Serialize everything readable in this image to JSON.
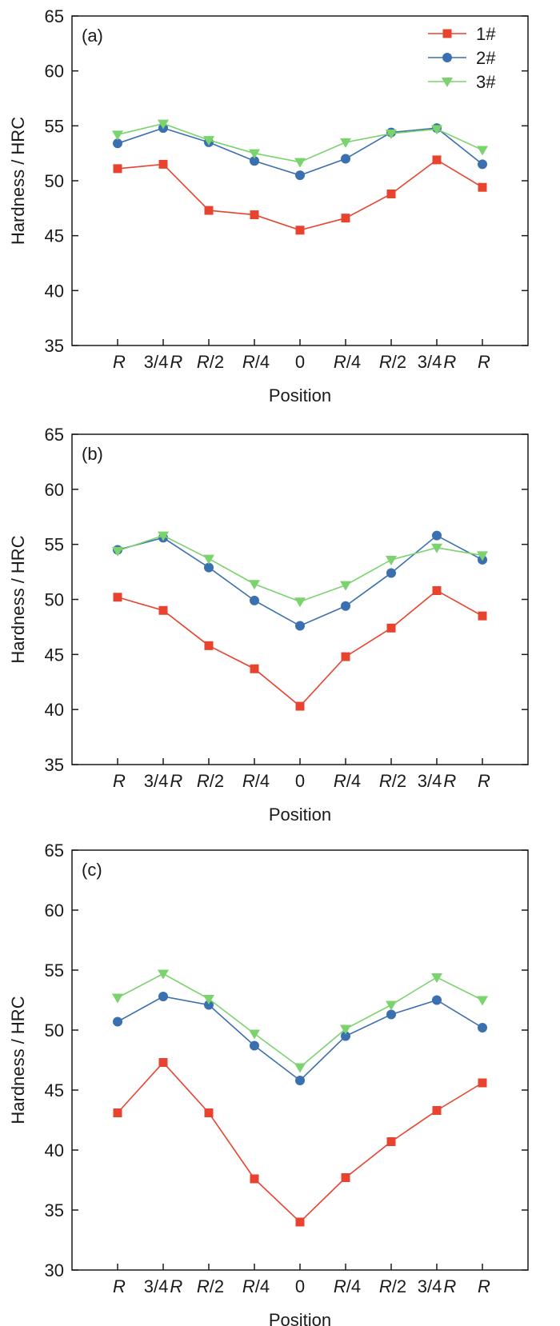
{
  "chart_data": [
    {
      "type": "line",
      "panel_label": "(a)",
      "xlabel": "Position",
      "ylabel": "Hardness / HRC",
      "ylim": [
        35,
        65
      ],
      "yticks": [
        35,
        40,
        45,
        50,
        55,
        60,
        65
      ],
      "categories": [
        "R",
        "3/4R",
        "R/2",
        "R/4",
        "0",
        "R/4",
        "R/2",
        "3/4R",
        "R"
      ],
      "grid": false,
      "legend": {
        "placement": "top-right",
        "entries": [
          "1#",
          "2#",
          "3#"
        ]
      },
      "series": [
        {
          "name": "1#",
          "color": "#e8432f",
          "marker": "square",
          "values": [
            51.1,
            51.5,
            47.3,
            46.9,
            45.5,
            46.6,
            48.8,
            51.9,
            49.4
          ]
        },
        {
          "name": "2#",
          "color": "#3a6fb0",
          "marker": "circle",
          "values": [
            53.4,
            54.8,
            53.5,
            51.8,
            50.5,
            52.0,
            54.4,
            54.8,
            51.5
          ]
        },
        {
          "name": "3#",
          "color": "#7bd36e",
          "marker": "triangle-down",
          "values": [
            54.2,
            55.2,
            53.7,
            52.5,
            51.7,
            53.5,
            54.3,
            54.7,
            52.8
          ]
        }
      ]
    },
    {
      "type": "line",
      "panel_label": "(b)",
      "xlabel": "Position",
      "ylabel": "Hardness / HRC",
      "ylim": [
        35,
        65
      ],
      "yticks": [
        35,
        40,
        45,
        50,
        55,
        60,
        65
      ],
      "categories": [
        "R",
        "3/4R",
        "R/2",
        "R/4",
        "0",
        "R/4",
        "R/2",
        "3/4R",
        "R"
      ],
      "grid": false,
      "series": [
        {
          "name": "1#",
          "color": "#e8432f",
          "marker": "square",
          "values": [
            50.2,
            49.0,
            45.8,
            43.7,
            40.3,
            44.8,
            47.4,
            50.8,
            48.5
          ]
        },
        {
          "name": "2#",
          "color": "#3a6fb0",
          "marker": "circle",
          "values": [
            54.5,
            55.6,
            52.9,
            49.9,
            47.6,
            49.4,
            52.4,
            55.8,
            53.6
          ]
        },
        {
          "name": "3#",
          "color": "#7bd36e",
          "marker": "triangle-down",
          "values": [
            54.4,
            55.8,
            53.7,
            51.4,
            49.8,
            51.3,
            53.6,
            54.7,
            54.0
          ]
        }
      ]
    },
    {
      "type": "line",
      "panel_label": "(c)",
      "xlabel": "Position",
      "ylabel": "Hardness / HRC",
      "ylim": [
        30,
        65
      ],
      "yticks": [
        30,
        35,
        40,
        45,
        50,
        55,
        60,
        65
      ],
      "categories": [
        "R",
        "3/4R",
        "R/2",
        "R/4",
        "0",
        "R/4",
        "R/2",
        "3/4R",
        "R"
      ],
      "grid": false,
      "series": [
        {
          "name": "1#",
          "color": "#e8432f",
          "marker": "square",
          "values": [
            43.1,
            47.3,
            43.1,
            37.6,
            34.0,
            37.7,
            40.7,
            43.3,
            45.6
          ]
        },
        {
          "name": "2#",
          "color": "#3a6fb0",
          "marker": "circle",
          "values": [
            50.7,
            52.8,
            52.1,
            48.7,
            45.8,
            49.5,
            51.3,
            52.5,
            50.2
          ]
        },
        {
          "name": "3#",
          "color": "#7bd36e",
          "marker": "triangle-down",
          "values": [
            52.7,
            54.7,
            52.6,
            49.7,
            46.9,
            50.1,
            52.1,
            54.4,
            52.5
          ]
        }
      ]
    }
  ]
}
